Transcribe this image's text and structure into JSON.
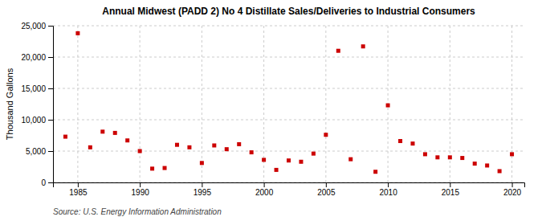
{
  "chart_data": {
    "type": "scatter",
    "title": "Annual Midwest (PADD 2) No 4 Distillate Sales/Deliveries to Industrial Consumers",
    "ylabel": "Thousand Gallons",
    "source": "Source: U.S. Energy Information Administration",
    "color": "#cc0000",
    "marker": "square",
    "grid": true,
    "x": [
      1984,
      1985,
      1986,
      1987,
      1988,
      1989,
      1990,
      1991,
      1992,
      1993,
      1994,
      1995,
      1996,
      1997,
      1998,
      1999,
      2000,
      2001,
      2002,
      2003,
      2004,
      2005,
      2006,
      2007,
      2008,
      2009,
      2010,
      2011,
      2012,
      2013,
      2014,
      2015,
      2016,
      2017,
      2018,
      2019,
      2020
    ],
    "values": [
      7300,
      23800,
      5600,
      8100,
      7900,
      6700,
      5000,
      2200,
      2300,
      6000,
      5600,
      3100,
      5900,
      5300,
      6100,
      4800,
      3600,
      2000,
      3500,
      3300,
      4600,
      7600,
      21000,
      3700,
      21700,
      1700,
      12300,
      6600,
      6200,
      4500,
      4000,
      4000,
      3900,
      3000,
      2700,
      1800,
      4500
    ],
    "xlim": [
      1983,
      2021
    ],
    "ylim": [
      0,
      25000
    ],
    "xticks": [
      1985,
      1990,
      1995,
      2000,
      2005,
      2010,
      2015,
      2020
    ],
    "yticks": [
      0,
      {
        "value": 5000,
        "label": "5,000"
      },
      {
        "value": 10000,
        "label": "10,000"
      },
      {
        "value": 15000,
        "label": "15,000"
      },
      {
        "value": 20000,
        "label": "20,000"
      },
      {
        "value": 25000,
        "label": "25,000"
      }
    ]
  }
}
